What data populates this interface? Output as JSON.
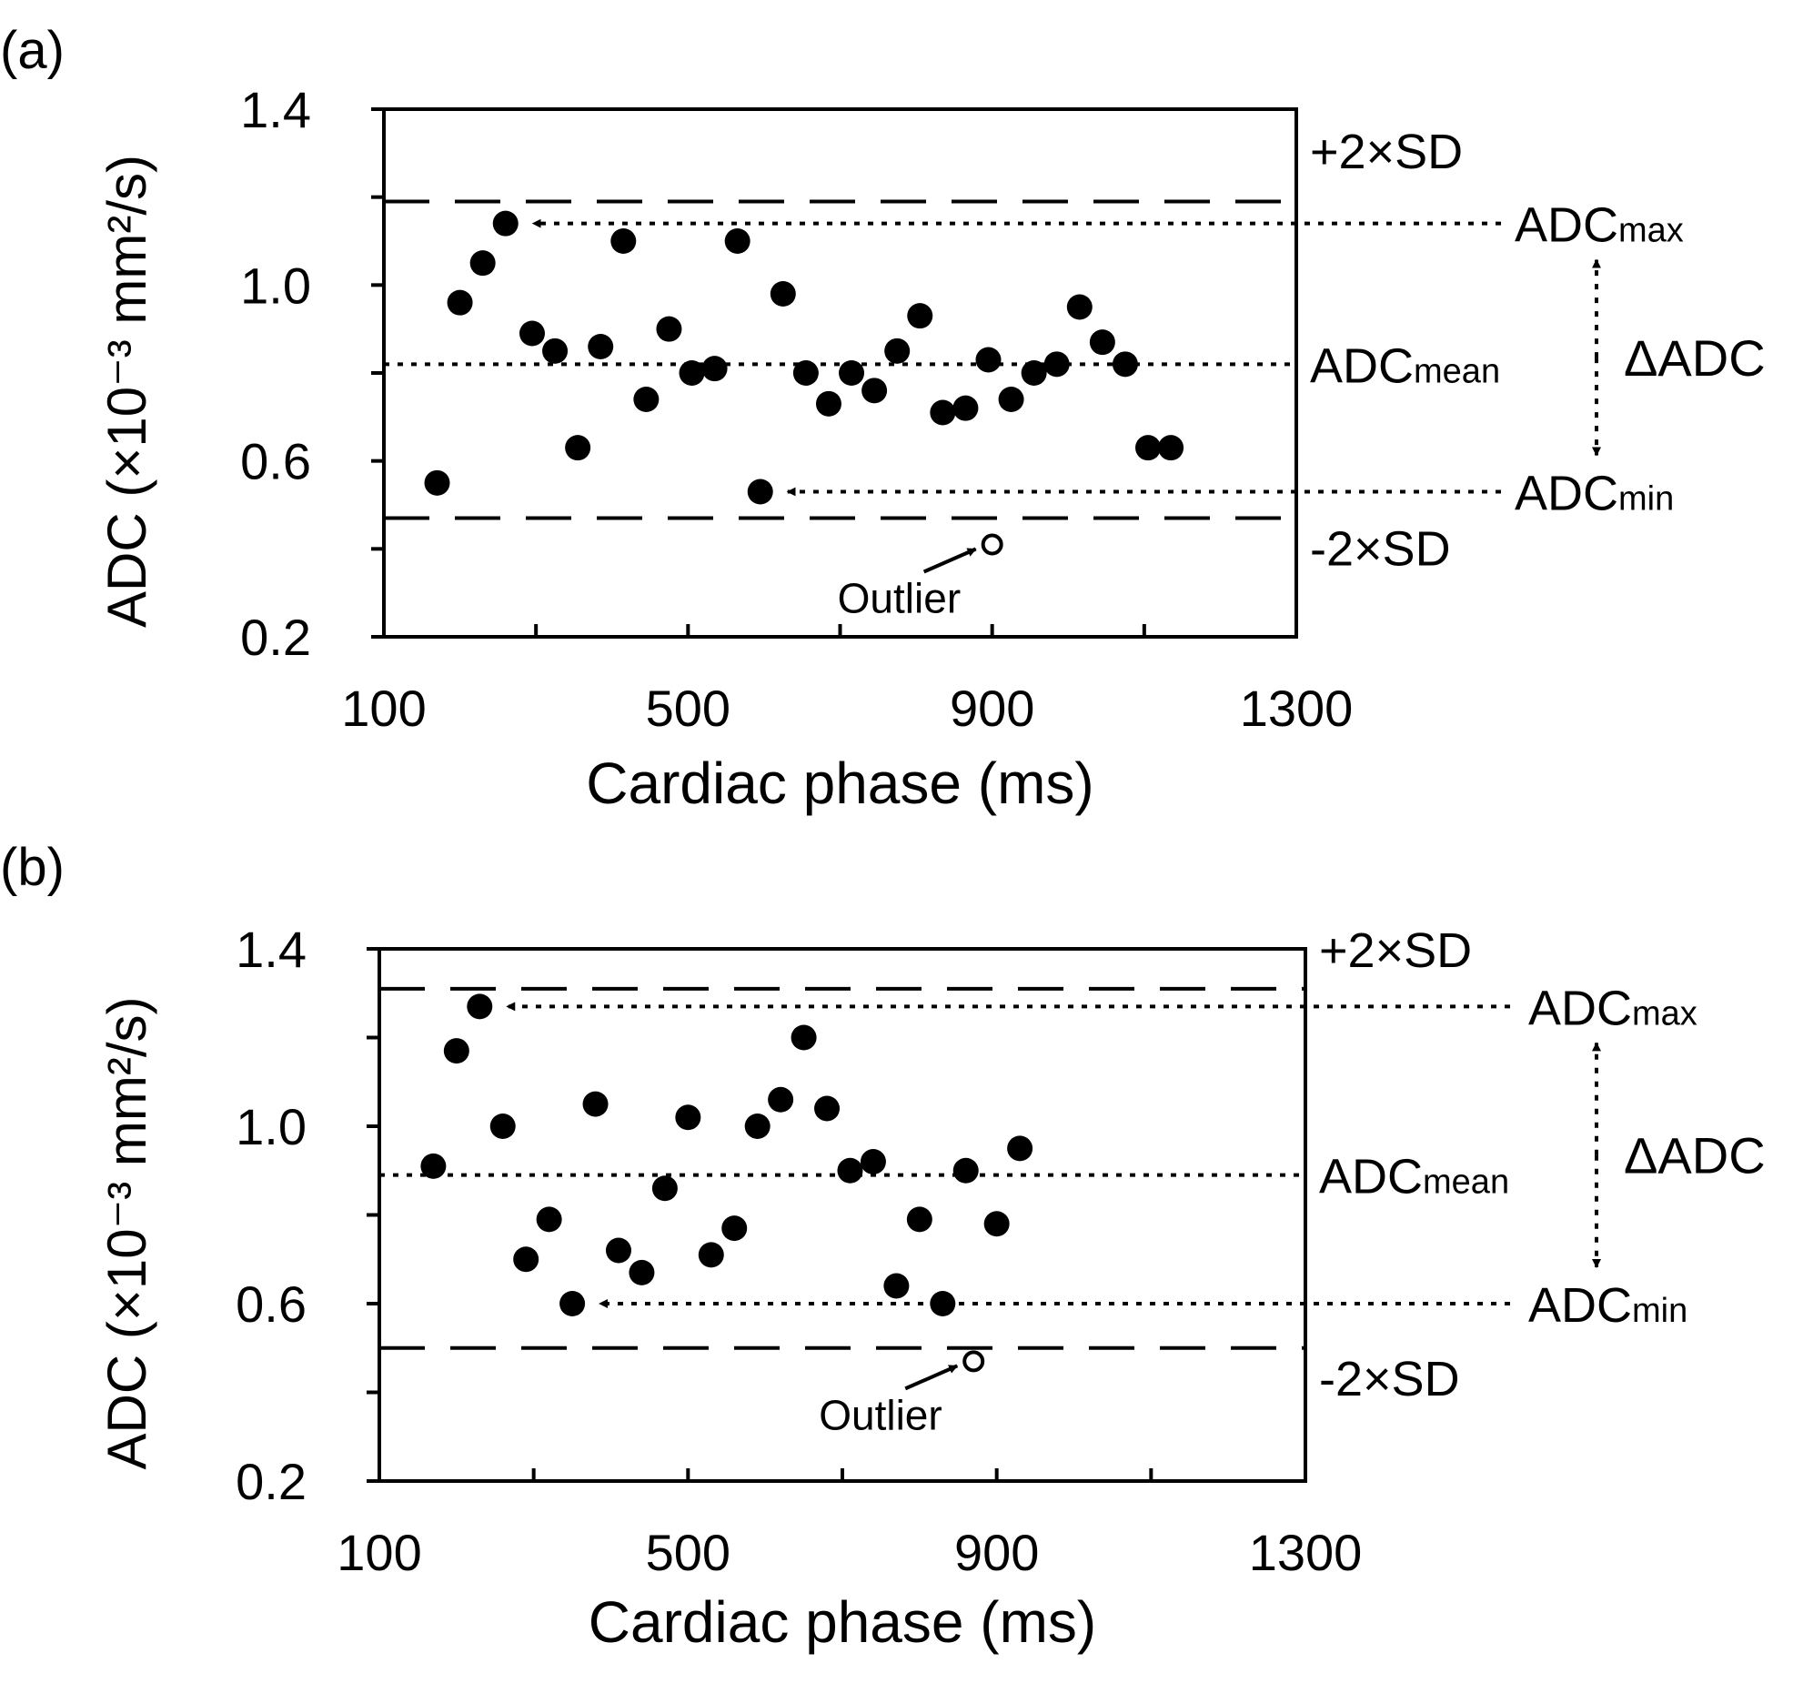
{
  "chart_data": [
    {
      "panel_label": "(a)",
      "type": "scatter",
      "xlabel": "Cardiac phase (ms)",
      "ylabel": "ADC (×10⁻³ mm²/s)",
      "xlim": [
        100,
        1300
      ],
      "ylim": [
        0.2,
        1.4
      ],
      "xticks": [
        100,
        500,
        900,
        1300
      ],
      "yticks": [
        0.2,
        0.6,
        1.0,
        1.4
      ],
      "grid": false,
      "series": [
        {
          "name": "",
          "marker": "filled-circle",
          "x": [
            170,
            200,
            230,
            260,
            295,
            325,
            355,
            385,
            415,
            445,
            475,
            505,
            535,
            565,
            595,
            625,
            655,
            685,
            715,
            745,
            775,
            805,
            835,
            865,
            895,
            925,
            955,
            985,
            1015,
            1045,
            1075,
            1105,
            1135
          ],
          "y": [
            0.55,
            0.96,
            1.05,
            1.14,
            0.89,
            0.85,
            0.63,
            0.86,
            1.1,
            0.74,
            0.9,
            0.8,
            0.81,
            1.1,
            0.53,
            0.98,
            0.8,
            0.73,
            0.8,
            0.76,
            0.85,
            0.93,
            0.71,
            0.72,
            0.83,
            0.74,
            0.8,
            0.82,
            0.95,
            0.87,
            0.82,
            0.63,
            0.63
          ]
        },
        {
          "name": "",
          "marker": "open-circle",
          "x": [
            900
          ],
          "y": [
            0.41
          ]
        }
      ],
      "reference_lines": {
        "upper_sd": {
          "value": 1.19,
          "label": "+2×SD"
        },
        "lower_sd": {
          "value": 0.47,
          "label": "-2×SD"
        },
        "mean": {
          "value": 0.82,
          "label_main": "ADC",
          "label_sub": "mean"
        },
        "max": {
          "value": 1.14,
          "label_main": "ADC",
          "label_sub": "max"
        },
        "min": {
          "value": 0.53,
          "label_main": "ADC",
          "label_sub": "min"
        }
      },
      "delta_label": "ΔADC",
      "outlier_label": "Outlier"
    },
    {
      "panel_label": "(b)",
      "type": "scatter",
      "xlabel": "Cardiac phase (ms)",
      "ylabel": "ADC (×10⁻³ mm²/s)",
      "xlim": [
        100,
        1300
      ],
      "ylim": [
        0.2,
        1.4
      ],
      "xticks": [
        100,
        500,
        900,
        1300
      ],
      "yticks": [
        0.2,
        0.6,
        1.0,
        1.4
      ],
      "grid": false,
      "series": [
        {
          "name": "",
          "marker": "filled-circle",
          "x": [
            170,
            200,
            230,
            260,
            290,
            320,
            350,
            380,
            410,
            440,
            470,
            500,
            530,
            560,
            590,
            620,
            650,
            680,
            710,
            740,
            770,
            800,
            830,
            860,
            900,
            930
          ],
          "y": [
            0.91,
            1.17,
            1.27,
            1.0,
            0.7,
            0.79,
            0.6,
            1.05,
            0.72,
            0.67,
            0.86,
            1.02,
            0.71,
            0.77,
            1.0,
            1.06,
            1.2,
            1.04,
            0.9,
            0.92,
            0.64,
            0.79,
            0.6,
            0.9,
            0.78,
            0.95
          ]
        },
        {
          "name": "",
          "marker": "open-circle",
          "x": [
            870
          ],
          "y": [
            0.47
          ]
        }
      ],
      "reference_lines": {
        "upper_sd": {
          "value": 1.31,
          "label": "+2×SD"
        },
        "lower_sd": {
          "value": 0.5,
          "label": "-2×SD"
        },
        "mean": {
          "value": 0.89,
          "label_main": "ADC",
          "label_sub": "mean"
        },
        "max": {
          "value": 1.27,
          "label_main": "ADC",
          "label_sub": "max"
        },
        "min": {
          "value": 0.6,
          "label_main": "ADC",
          "label_sub": "min"
        }
      },
      "delta_label": "ΔADC",
      "outlier_label": "Outlier"
    }
  ]
}
